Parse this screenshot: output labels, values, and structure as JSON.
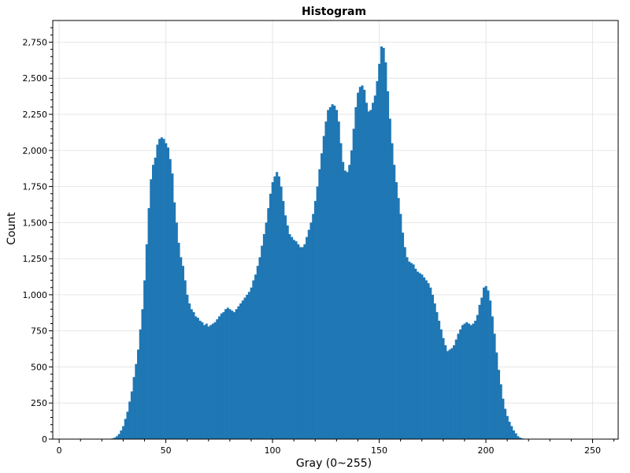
{
  "chart_data": {
    "type": "bar",
    "title": "Histogram",
    "xlabel": "Gray (0~255)",
    "ylabel": "Count",
    "xlim": [
      -3,
      262
    ],
    "ylim": [
      0,
      2900
    ],
    "x_ticks": [
      0,
      50,
      100,
      150,
      200,
      250
    ],
    "x_tick_labels": [
      "0",
      "50",
      "100",
      "150",
      "200",
      "250"
    ],
    "y_ticks": [
      0,
      250,
      500,
      750,
      1000,
      1250,
      1500,
      1750,
      2000,
      2250,
      2500,
      2750
    ],
    "y_tick_labels": [
      "0",
      "250",
      "500",
      "750",
      "1,000",
      "1,250",
      "1,500",
      "1,750",
      "2,000",
      "2,250",
      "2,500",
      "2,750"
    ],
    "grid": true,
    "bar_color": "#1f77b4",
    "series": [
      {
        "x_start": 0,
        "x_step": 1,
        "values": [
          0,
          0,
          0,
          0,
          0,
          0,
          0,
          0,
          0,
          0,
          0,
          0,
          0,
          0,
          0,
          0,
          0,
          0,
          0,
          0,
          0,
          0,
          0,
          0,
          0,
          5,
          10,
          20,
          35,
          60,
          90,
          140,
          190,
          260,
          330,
          430,
          520,
          620,
          760,
          900,
          1100,
          1350,
          1600,
          1800,
          1900,
          1950,
          2040,
          2080,
          2090,
          2080,
          2050,
          2020,
          1940,
          1840,
          1640,
          1500,
          1360,
          1260,
          1200,
          1100,
          1000,
          940,
          900,
          880,
          850,
          840,
          820,
          810,
          790,
          800,
          780,
          790,
          800,
          810,
          830,
          850,
          870,
          880,
          900,
          910,
          900,
          890,
          880,
          900,
          920,
          940,
          960,
          980,
          1000,
          1020,
          1050,
          1100,
          1140,
          1200,
          1260,
          1340,
          1420,
          1500,
          1600,
          1700,
          1780,
          1820,
          1850,
          1820,
          1750,
          1650,
          1550,
          1480,
          1420,
          1400,
          1380,
          1370,
          1350,
          1330,
          1330,
          1350,
          1400,
          1450,
          1500,
          1560,
          1650,
          1750,
          1870,
          1980,
          2100,
          2200,
          2280,
          2300,
          2320,
          2310,
          2280,
          2200,
          2050,
          1920,
          1860,
          1850,
          1900,
          2000,
          2150,
          2300,
          2400,
          2440,
          2450,
          2420,
          2330,
          2270,
          2280,
          2330,
          2380,
          2480,
          2600,
          2720,
          2710,
          2610,
          2410,
          2220,
          2050,
          1900,
          1780,
          1670,
          1560,
          1430,
          1330,
          1260,
          1230,
          1220,
          1210,
          1180,
          1160,
          1150,
          1140,
          1120,
          1100,
          1080,
          1050,
          1000,
          940,
          880,
          820,
          760,
          700,
          650,
          610,
          620,
          630,
          650,
          690,
          730,
          760,
          790,
          800,
          810,
          800,
          790,
          800,
          820,
          860,
          930,
          980,
          1050,
          1060,
          1030,
          960,
          850,
          730,
          600,
          480,
          380,
          280,
          210,
          160,
          120,
          90,
          60,
          40,
          20,
          10,
          5,
          2,
          0,
          0,
          0,
          0,
          0,
          0,
          0,
          0,
          0,
          0,
          0,
          0,
          0,
          0,
          0,
          0,
          0,
          0,
          0,
          0,
          0,
          0,
          0
        ]
      }
    ]
  }
}
